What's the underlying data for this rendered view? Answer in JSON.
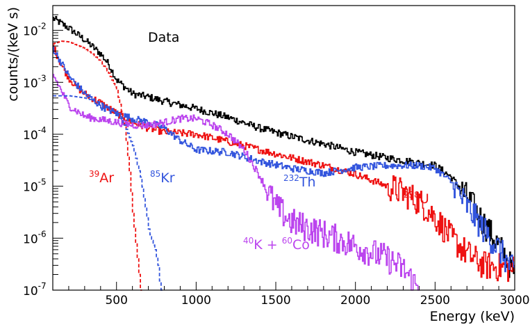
{
  "chart_data": {
    "type": "line",
    "title": "",
    "xlabel": "Energy (keV)",
    "ylabel": "counts/(keV s)",
    "xlim": [
      100,
      3000
    ],
    "ylim": [
      1e-07,
      0.03
    ],
    "yscale": "log",
    "grid": false,
    "x_ticks": [
      "500",
      "1000",
      "1500",
      "2000",
      "2500",
      "3000"
    ],
    "y_ticks": [
      {
        "base": "10",
        "exp": "-7"
      },
      {
        "base": "10",
        "exp": "-6"
      },
      {
        "base": "10",
        "exp": "-5"
      },
      {
        "base": "10",
        "exp": "-4"
      },
      {
        "base": "10",
        "exp": "-3"
      },
      {
        "base": "10",
        "exp": "-2"
      }
    ],
    "annotations": [
      {
        "text": "Data",
        "color": "#000000"
      },
      {
        "sup": "39",
        "text": "Ar",
        "color": "#ee1111"
      },
      {
        "sup": "85",
        "text": "Kr",
        "color": "#3355dd"
      },
      {
        "sup": "232",
        "text": "Th",
        "color": "#3355dd"
      },
      {
        "sup": "238",
        "text": "U",
        "color": "#ee1111"
      },
      {
        "sup": "40",
        "text": "K + ",
        "sup2": "60",
        "text2": "Co",
        "color": "#bb44ee"
      }
    ],
    "series": [
      {
        "style": "solid",
        "color": "#000000",
        "x": [
          100,
          200,
          300,
          400,
          450,
          500,
          600,
          700,
          800,
          1000,
          1200,
          1400,
          1600,
          1800,
          2000,
          2200,
          2400,
          2500,
          2600,
          2700,
          2800,
          2900,
          3000
        ],
        "y": [
          0.017,
          0.011,
          0.0065,
          0.0035,
          0.0022,
          0.0011,
          0.0006,
          0.00052,
          0.00043,
          0.00031,
          0.00021,
          0.00013,
          9e-05,
          6.5e-05,
          4.5e-05,
          3.5e-05,
          2.8e-05,
          2.5e-05,
          1.5e-05,
          6e-06,
          2e-06,
          7e-07,
          2e-07
        ]
      },
      {
        "style": "solid",
        "color": "#ee1111",
        "x": [
          100,
          150,
          200,
          250,
          300,
          400,
          500,
          600,
          700,
          800,
          1000,
          1200,
          1400,
          1600,
          1800,
          2000,
          2200,
          2300,
          2400,
          2500,
          2600,
          2700,
          2800,
          3000
        ],
        "y": [
          0.005,
          0.0022,
          0.0012,
          0.0008,
          0.0006,
          0.0004,
          0.00025,
          0.00017,
          0.00013,
          0.00011,
          0.0001,
          7.2e-05,
          5e-05,
          3.5e-05,
          2.5e-05,
          1.7e-05,
          1e-05,
          7.5e-06,
          5e-06,
          2.5e-06,
          1e-06,
          5e-07,
          3e-07,
          2.5e-07
        ]
      },
      {
        "style": "solid",
        "color": "#3355dd",
        "x": [
          100,
          200,
          300,
          400,
          500,
          600,
          700,
          800,
          900,
          1000,
          1200,
          1400,
          1600,
          1800,
          2000,
          2200,
          2400,
          2500,
          2600,
          2700,
          2800,
          2900,
          3000
        ],
        "y": [
          0.0045,
          0.0013,
          0.0006,
          0.00035,
          0.00025,
          0.0002,
          0.00017,
          0.00013,
          7.5e-05,
          5e-05,
          4.5e-05,
          3e-05,
          2.2e-05,
          1.8e-05,
          2.3e-05,
          2.5e-05,
          2.5e-05,
          2.2e-05,
          1.2e-05,
          4e-06,
          1.5e-06,
          6e-07,
          2e-07
        ]
      },
      {
        "style": "solid",
        "color": "#bb44ee",
        "x": [
          100,
          150,
          200,
          300,
          400,
          500,
          600,
          700,
          800,
          900,
          1000,
          1100,
          1200,
          1300,
          1400,
          1500,
          1600,
          1800,
          2000,
          2200,
          2300,
          2400
        ],
        "y": [
          0.0014,
          0.0007,
          0.00035,
          0.00022,
          0.00019,
          0.00017,
          0.00015,
          0.00015,
          0.00017,
          0.0002,
          0.0002,
          0.00015,
          0.0001,
          5e-05,
          1.5e-05,
          4e-06,
          2e-06,
          1.2e-06,
          7e-07,
          4e-07,
          2.5e-07,
          1e-07
        ]
      },
      {
        "style": "dashed",
        "color": "#ee1111",
        "x": [
          100,
          150,
          200,
          300,
          350,
          400,
          450,
          500,
          550,
          580,
          600,
          620,
          630,
          640,
          650
        ],
        "y": [
          0.0055,
          0.0062,
          0.006,
          0.0045,
          0.0035,
          0.0025,
          0.0015,
          0.0007,
          0.00015,
          2e-05,
          3e-06,
          8e-07,
          4e-07,
          2e-07,
          1e-07
        ]
      },
      {
        "style": "dashed",
        "color": "#3355dd",
        "x": [
          100,
          200,
          300,
          400,
          500,
          550,
          600,
          650,
          680,
          700,
          720,
          740,
          760,
          770,
          780
        ],
        "y": [
          0.00055,
          0.00055,
          0.0005,
          0.0004,
          0.00025,
          0.00015,
          6e-05,
          1.5e-05,
          4e-06,
          1.5e-06,
          9e-07,
          6e-07,
          3e-07,
          1.5e-07,
          1e-07
        ]
      }
    ]
  }
}
